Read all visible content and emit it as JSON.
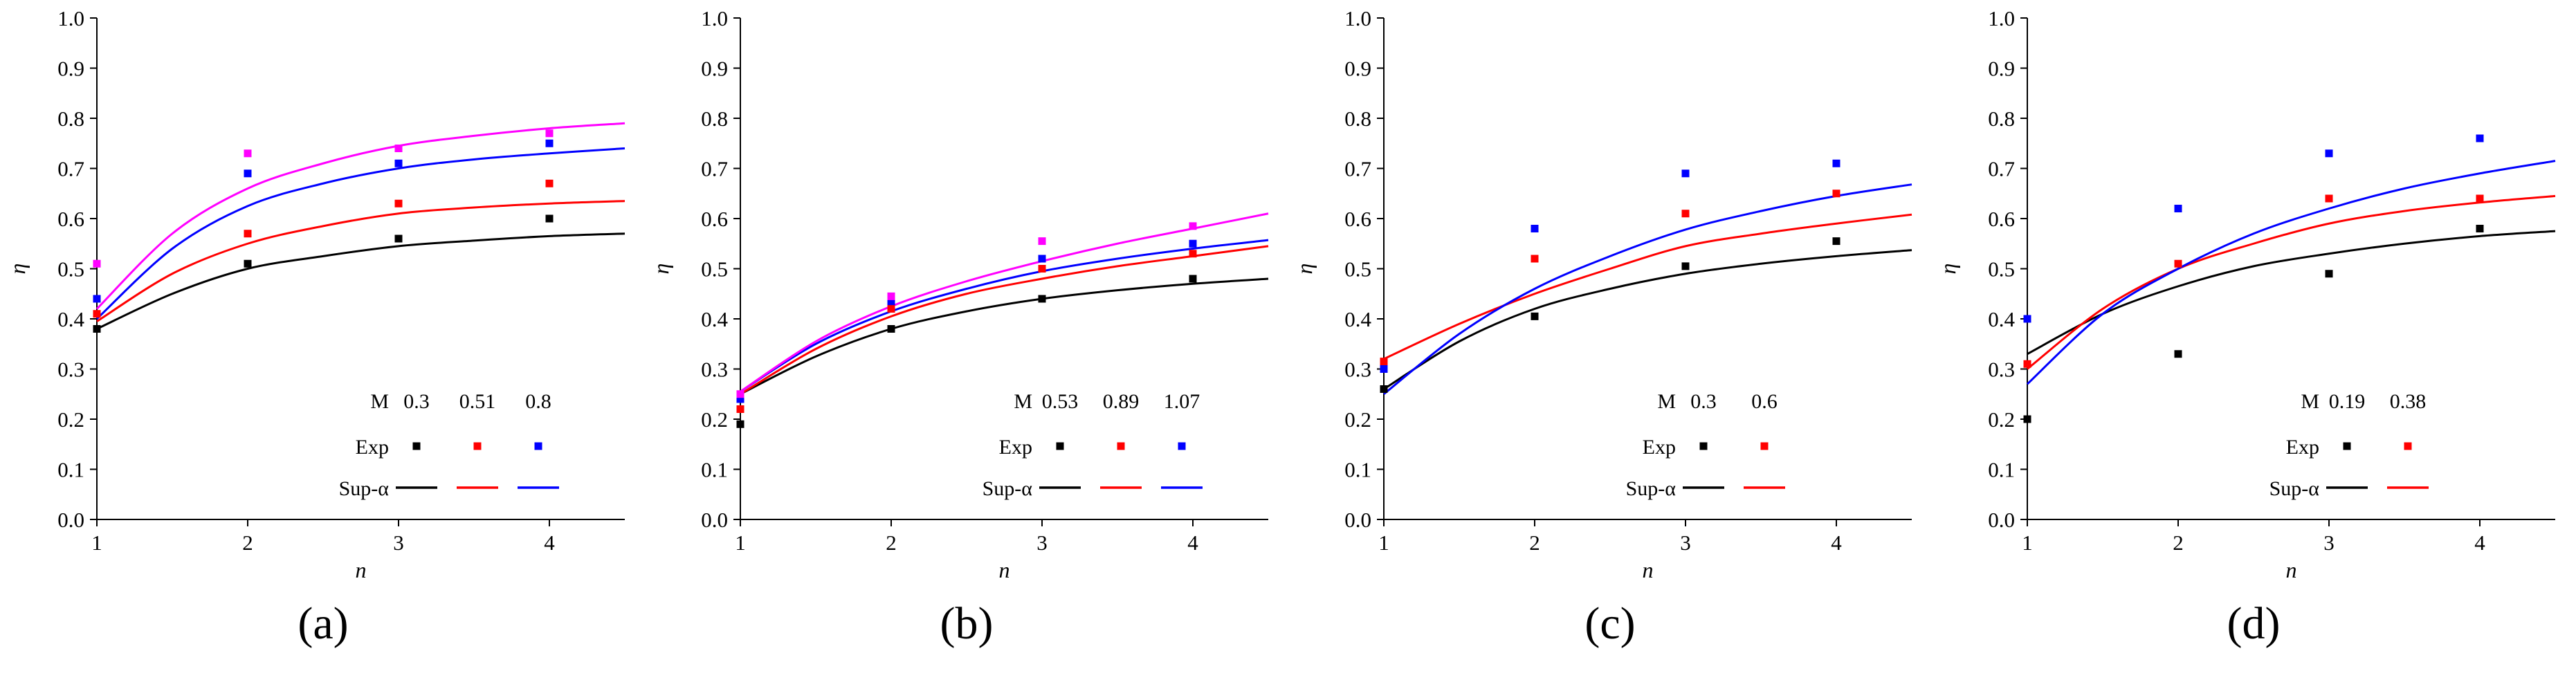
{
  "figure": {
    "background": "#ffffff"
  },
  "chart_data": [
    {
      "type": "line+scatter",
      "caption": "(a)",
      "xlabel": "n",
      "ylabel": "η",
      "xlim": [
        1,
        4.5
      ],
      "ylim": [
        0,
        1
      ],
      "grid": false,
      "legend_position": "bottom-right-inside",
      "xticks": [
        "1",
        "2",
        "3",
        "4"
      ],
      "yticks": [
        "0.0",
        "0.1",
        "0.2",
        "0.3",
        "0.4",
        "0.5",
        "0.6",
        "0.7",
        "0.8",
        "0.9",
        "1.0"
      ],
      "legend": {
        "header_label": "M",
        "values": [
          "0.3",
          "0.51",
          "0.8"
        ],
        "colors": [
          "#000000",
          "#ff0000",
          "#0000ff"
        ],
        "exp_label": "Exp",
        "model_label": "Sup-α"
      },
      "series": [
        {
          "name": "M=0.3",
          "color": "#000000",
          "exp": [
            [
              1,
              0.38
            ],
            [
              2,
              0.51
            ],
            [
              3,
              0.56
            ],
            [
              4,
              0.6
            ]
          ],
          "model": [
            [
              1,
              0.38
            ],
            [
              1.5,
              0.45
            ],
            [
              2,
              0.5
            ],
            [
              2.5,
              0.525
            ],
            [
              3,
              0.545
            ],
            [
              3.5,
              0.556
            ],
            [
              4,
              0.565
            ],
            [
              4.5,
              0.57
            ]
          ]
        },
        {
          "name": "M=0.51",
          "color": "#ff0000",
          "exp": [
            [
              1,
              0.41
            ],
            [
              2,
              0.57
            ],
            [
              3,
              0.63
            ],
            [
              4,
              0.67
            ]
          ],
          "model": [
            [
              1,
              0.395
            ],
            [
              1.5,
              0.49
            ],
            [
              2,
              0.55
            ],
            [
              2.5,
              0.585
            ],
            [
              3,
              0.61
            ],
            [
              3.5,
              0.622
            ],
            [
              4,
              0.63
            ],
            [
              4.5,
              0.635
            ]
          ]
        },
        {
          "name": "M=0.8",
          "color": "#0000ff",
          "exp": [
            [
              1,
              0.44
            ],
            [
              2,
              0.69
            ],
            [
              3,
              0.71
            ],
            [
              4,
              0.75
            ]
          ],
          "model": [
            [
              1,
              0.4
            ],
            [
              1.5,
              0.54
            ],
            [
              2,
              0.625
            ],
            [
              2.5,
              0.67
            ],
            [
              3,
              0.7
            ],
            [
              3.5,
              0.718
            ],
            [
              4,
              0.73
            ],
            [
              4.5,
              0.74
            ]
          ]
        },
        {
          "name": "unlabeled",
          "color": "#ff00ff",
          "exp": [
            [
              1,
              0.51
            ],
            [
              2,
              0.73
            ],
            [
              3,
              0.74
            ],
            [
              4,
              0.77
            ]
          ],
          "model": [
            [
              1,
              0.42
            ],
            [
              1.5,
              0.57
            ],
            [
              2,
              0.66
            ],
            [
              2.5,
              0.71
            ],
            [
              3,
              0.745
            ],
            [
              3.5,
              0.765
            ],
            [
              4,
              0.78
            ],
            [
              4.5,
              0.79
            ]
          ]
        }
      ]
    },
    {
      "type": "line+scatter",
      "caption": "(b)",
      "xlabel": "n",
      "ylabel": "η",
      "xlim": [
        1,
        4.5
      ],
      "ylim": [
        0,
        1
      ],
      "grid": false,
      "legend_position": "bottom-right-inside",
      "xticks": [
        "1",
        "2",
        "3",
        "4"
      ],
      "yticks": [
        "0.0",
        "0.1",
        "0.2",
        "0.3",
        "0.4",
        "0.5",
        "0.6",
        "0.7",
        "0.8",
        "0.9",
        "1.0"
      ],
      "legend": {
        "header_label": "M",
        "values": [
          "0.53",
          "0.89",
          "1.07"
        ],
        "colors": [
          "#000000",
          "#ff0000",
          "#0000ff"
        ],
        "exp_label": "Exp",
        "model_label": "Sup-α"
      },
      "series": [
        {
          "name": "M=0.53",
          "color": "#000000",
          "exp": [
            [
              1,
              0.19
            ],
            [
              2,
              0.38
            ],
            [
              3,
              0.44
            ],
            [
              4,
              0.48
            ]
          ],
          "model": [
            [
              1,
              0.25
            ],
            [
              1.5,
              0.325
            ],
            [
              2,
              0.38
            ],
            [
              2.5,
              0.415
            ],
            [
              3,
              0.44
            ],
            [
              3.5,
              0.457
            ],
            [
              4,
              0.47
            ],
            [
              4.5,
              0.48
            ]
          ]
        },
        {
          "name": "M=0.89",
          "color": "#ff0000",
          "exp": [
            [
              1,
              0.22
            ],
            [
              2,
              0.42
            ],
            [
              3,
              0.5
            ],
            [
              4,
              0.53
            ]
          ],
          "model": [
            [
              1,
              0.25
            ],
            [
              1.5,
              0.34
            ],
            [
              2,
              0.405
            ],
            [
              2.5,
              0.45
            ],
            [
              3,
              0.48
            ],
            [
              3.5,
              0.505
            ],
            [
              4,
              0.525
            ],
            [
              4.5,
              0.545
            ]
          ]
        },
        {
          "name": "M=1.07",
          "color": "#0000ff",
          "exp": [
            [
              1,
              0.24
            ],
            [
              2,
              0.435
            ],
            [
              3,
              0.52
            ],
            [
              4,
              0.55
            ]
          ],
          "model": [
            [
              1,
              0.255
            ],
            [
              1.5,
              0.35
            ],
            [
              2,
              0.415
            ],
            [
              2.5,
              0.46
            ],
            [
              3,
              0.495
            ],
            [
              3.5,
              0.52
            ],
            [
              4,
              0.54
            ],
            [
              4.5,
              0.557
            ]
          ]
        },
        {
          "name": "unlabeled",
          "color": "#ff00ff",
          "exp": [
            [
              1,
              0.25
            ],
            [
              2,
              0.445
            ],
            [
              3,
              0.555
            ],
            [
              4,
              0.585
            ]
          ],
          "model": [
            [
              1,
              0.255
            ],
            [
              1.5,
              0.355
            ],
            [
              2,
              0.425
            ],
            [
              2.5,
              0.475
            ],
            [
              3,
              0.515
            ],
            [
              3.5,
              0.55
            ],
            [
              4,
              0.58
            ],
            [
              4.5,
              0.61
            ]
          ]
        }
      ]
    },
    {
      "type": "line+scatter",
      "caption": "(c)",
      "xlabel": "n",
      "ylabel": "η",
      "xlim": [
        1,
        4.5
      ],
      "ylim": [
        0,
        1
      ],
      "grid": false,
      "legend_position": "bottom-right-inside",
      "xticks": [
        "1",
        "2",
        "3",
        "4"
      ],
      "yticks": [
        "0.0",
        "0.1",
        "0.2",
        "0.3",
        "0.4",
        "0.5",
        "0.6",
        "0.7",
        "0.8",
        "0.9",
        "1.0"
      ],
      "legend": {
        "header_label": "M",
        "values": [
          "0.3",
          "0.6"
        ],
        "colors": [
          "#000000",
          "#ff0000"
        ],
        "exp_label": "Exp",
        "model_label": "Sup-α"
      },
      "series": [
        {
          "name": "M=0.3",
          "color": "#000000",
          "exp": [
            [
              1,
              0.26
            ],
            [
              2,
              0.405
            ],
            [
              3,
              0.505
            ],
            [
              4,
              0.555
            ]
          ],
          "model": [
            [
              1,
              0.26
            ],
            [
              1.5,
              0.355
            ],
            [
              2,
              0.42
            ],
            [
              2.5,
              0.46
            ],
            [
              3,
              0.49
            ],
            [
              3.5,
              0.51
            ],
            [
              4,
              0.525
            ],
            [
              4.5,
              0.537
            ]
          ]
        },
        {
          "name": "M=0.6",
          "color": "#ff0000",
          "exp": [
            [
              1,
              0.315
            ],
            [
              2,
              0.52
            ],
            [
              3,
              0.61
            ],
            [
              4,
              0.65
            ]
          ],
          "model": [
            [
              1,
              0.32
            ],
            [
              1.5,
              0.39
            ],
            [
              2,
              0.45
            ],
            [
              2.5,
              0.5
            ],
            [
              3,
              0.545
            ],
            [
              3.5,
              0.57
            ],
            [
              4,
              0.59
            ],
            [
              4.5,
              0.608
            ]
          ]
        },
        {
          "name": "unlabeled",
          "color": "#0000ff",
          "exp": [
            [
              1,
              0.3
            ],
            [
              2,
              0.58
            ],
            [
              3,
              0.69
            ],
            [
              4,
              0.71
            ]
          ],
          "model": [
            [
              1,
              0.25
            ],
            [
              1.5,
              0.37
            ],
            [
              2,
              0.46
            ],
            [
              2.5,
              0.525
            ],
            [
              3,
              0.578
            ],
            [
              3.5,
              0.615
            ],
            [
              4,
              0.645
            ],
            [
              4.5,
              0.668
            ]
          ]
        }
      ]
    },
    {
      "type": "line+scatter",
      "caption": "(d)",
      "xlabel": "n",
      "ylabel": "η",
      "xlim": [
        1,
        4.5
      ],
      "ylim": [
        0,
        1
      ],
      "grid": false,
      "legend_position": "bottom-right-inside",
      "xticks": [
        "1",
        "2",
        "3",
        "4"
      ],
      "yticks": [
        "0.0",
        "0.1",
        "0.2",
        "0.3",
        "0.4",
        "0.5",
        "0.6",
        "0.7",
        "0.8",
        "0.9",
        "1.0"
      ],
      "legend": {
        "header_label": "M",
        "values": [
          "0.19",
          "0.38"
        ],
        "colors": [
          "#000000",
          "#ff0000"
        ],
        "exp_label": "Exp",
        "model_label": "Sup-α"
      },
      "series": [
        {
          "name": "M=0.19",
          "color": "#000000",
          "exp": [
            [
              1,
              0.2
            ],
            [
              2,
              0.33
            ],
            [
              3,
              0.49
            ],
            [
              4,
              0.58
            ]
          ],
          "model": [
            [
              1,
              0.33
            ],
            [
              1.5,
              0.41
            ],
            [
              2,
              0.465
            ],
            [
              2.5,
              0.505
            ],
            [
              3,
              0.53
            ],
            [
              3.5,
              0.55
            ],
            [
              4,
              0.565
            ],
            [
              4.5,
              0.575
            ]
          ]
        },
        {
          "name": "M=0.38",
          "color": "#ff0000",
          "exp": [
            [
              1,
              0.31
            ],
            [
              2,
              0.51
            ],
            [
              3,
              0.64
            ],
            [
              4,
              0.64
            ]
          ],
          "model": [
            [
              1,
              0.3
            ],
            [
              1.5,
              0.42
            ],
            [
              2,
              0.5
            ],
            [
              2.5,
              0.55
            ],
            [
              3,
              0.59
            ],
            [
              3.5,
              0.615
            ],
            [
              4,
              0.632
            ],
            [
              4.5,
              0.645
            ]
          ]
        },
        {
          "name": "unlabeled",
          "color": "#0000ff",
          "exp": [
            [
              1,
              0.4
            ],
            [
              2,
              0.62
            ],
            [
              3,
              0.73
            ],
            [
              4,
              0.76
            ]
          ],
          "model": [
            [
              1,
              0.27
            ],
            [
              1.5,
              0.41
            ],
            [
              2,
              0.5
            ],
            [
              2.5,
              0.57
            ],
            [
              3,
              0.62
            ],
            [
              3.5,
              0.66
            ],
            [
              4,
              0.69
            ],
            [
              4.5,
              0.715
            ]
          ]
        }
      ]
    }
  ]
}
